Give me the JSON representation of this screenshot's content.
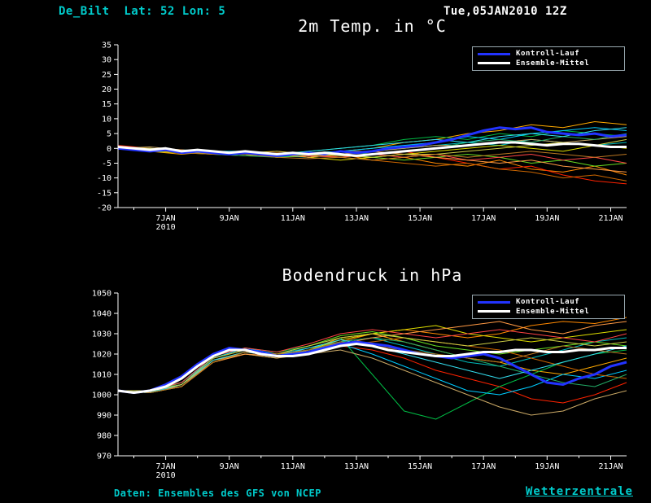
{
  "header": {
    "station": "De_Bilt  Lat: 52 Lon: 5",
    "run": "Tue,05JAN2010 12Z"
  },
  "footer": {
    "source": "Daten: Ensembles des GFS von NCEP",
    "brand": "Wetterzentrale"
  },
  "legend": {
    "control": "Kontroll-Lauf",
    "mean": "Ensemble-Mittel"
  },
  "colors": {
    "background": "#000000",
    "text": "#ffffff",
    "accent_cyan": "#00cccc",
    "control": "#2233ff",
    "mean": "#ffffff"
  },
  "chart_data": [
    {
      "id": "temperature",
      "type": "line",
      "title": "2m Temp. in °C",
      "ylabel": "",
      "xlabel": "",
      "ylim": [
        -20,
        35
      ],
      "yticks": [
        -20,
        -15,
        -10,
        -5,
        0,
        5,
        10,
        15,
        20,
        25,
        30,
        35
      ],
      "xlim": [
        5.5,
        21.5
      ],
      "xticks": [
        {
          "day": 7,
          "label": "7JAN",
          "sublabel": "2010"
        },
        {
          "day": 9,
          "label": "9JAN"
        },
        {
          "day": 11,
          "label": "11JAN"
        },
        {
          "day": 13,
          "label": "13JAN"
        },
        {
          "day": 15,
          "label": "15JAN"
        },
        {
          "day": 17,
          "label": "17JAN"
        },
        {
          "day": 19,
          "label": "19JAN"
        },
        {
          "day": 21,
          "label": "21JAN"
        }
      ],
      "control": {
        "name": "Kontroll-Lauf",
        "color": "#2233ff",
        "x_start": 5.5,
        "x_step": 0.5,
        "values": [
          0,
          -0.5,
          -1,
          -0.5,
          -1.5,
          -1,
          -1.5,
          -2,
          -1.5,
          -2,
          -2.5,
          -2,
          -1.5,
          -2,
          -1,
          -1.5,
          -1,
          0,
          0.5,
          1,
          2,
          3,
          4.5,
          6,
          7,
          6.5,
          7,
          5.5,
          5,
          4.5,
          5,
          4,
          4.5
        ]
      },
      "mean": {
        "name": "Ensemble-Mittel",
        "color": "#ffffff",
        "x_start": 5.5,
        "x_step": 0.5,
        "values": [
          0.5,
          0,
          -0.5,
          0,
          -1,
          -0.5,
          -1,
          -1.5,
          -1,
          -1.5,
          -2,
          -1.5,
          -2,
          -1.5,
          -2,
          -2.5,
          -2,
          -1.5,
          -1,
          -0.5,
          0,
          0.5,
          1,
          1.5,
          2,
          2,
          1.5,
          1,
          1.5,
          1.5,
          1,
          0.5,
          0.5
        ]
      },
      "members": [
        {
          "color": "#ff8800",
          "x_start": 5.5,
          "x_step": 1,
          "values": [
            0.5,
            0,
            -1,
            -2,
            -1,
            -2,
            -3,
            -2,
            -4,
            -3,
            -5,
            -6,
            -4,
            -7,
            -8,
            -6,
            -9
          ]
        },
        {
          "color": "#ffaa00",
          "x_start": 5.5,
          "x_step": 1,
          "values": [
            0,
            -1,
            -2,
            -1,
            -2,
            -3,
            -2,
            -1,
            0,
            2,
            3,
            5,
            6,
            8,
            7,
            9,
            8
          ]
        },
        {
          "color": "#ff2200",
          "x_start": 5.5,
          "x_step": 1,
          "values": [
            1,
            0,
            -1,
            -1.5,
            -2,
            -1,
            -2,
            -3,
            -2,
            -1,
            -3,
            -5,
            -7,
            -6,
            -9,
            -11,
            -12
          ]
        },
        {
          "color": "#00bb44",
          "x_start": 5.5,
          "x_step": 1,
          "values": [
            0,
            -0.5,
            -1,
            -2,
            -1.5,
            -2,
            -1,
            0,
            1,
            3,
            4,
            3,
            5,
            4,
            6,
            5,
            4
          ]
        },
        {
          "color": "#00bbbb",
          "x_start": 5.5,
          "x_step": 1,
          "values": [
            0.5,
            0,
            -1,
            -1,
            -2,
            -2.5,
            -3,
            -2,
            -1,
            0,
            1,
            2,
            1,
            3,
            2,
            1,
            2
          ]
        },
        {
          "color": "#dddd00",
          "x_start": 5.5,
          "x_step": 1,
          "values": [
            0,
            -1,
            -1.5,
            -2,
            -2.5,
            -2,
            -3,
            -4,
            -3,
            -2,
            -1,
            0,
            1,
            0,
            -1,
            1,
            0
          ]
        },
        {
          "color": "#00ccff",
          "x_start": 5.5,
          "x_step": 1,
          "values": [
            0.5,
            0,
            -0.5,
            -1,
            -1,
            -2,
            -1.5,
            -1,
            0,
            1,
            2,
            4,
            3,
            5,
            6,
            7,
            6
          ]
        },
        {
          "color": "#66dd22",
          "x_start": 5.5,
          "x_step": 1,
          "values": [
            0,
            -0.5,
            -1.5,
            -1,
            -2,
            -3,
            -2.5,
            -2,
            -3,
            -4,
            -3,
            -2,
            -3,
            -5,
            -4,
            -6,
            -5
          ]
        },
        {
          "color": "#cc6600",
          "x_start": 5.5,
          "x_step": 1,
          "values": [
            0.5,
            -0.5,
            -1,
            -2,
            -2,
            -1.5,
            -2,
            -3,
            -4,
            -5,
            -6,
            -5,
            -7,
            -8,
            -10,
            -9,
            -11
          ]
        },
        {
          "color": "#ccaa66",
          "x_start": 5.5,
          "x_step": 1,
          "values": [
            0,
            0.5,
            -0.5,
            -1,
            -1.5,
            -2,
            -2,
            -1,
            -1,
            0,
            1,
            1,
            2,
            3,
            2,
            3,
            4
          ]
        },
        {
          "color": "#ff4444",
          "x_start": 5.5,
          "x_step": 1,
          "values": [
            0.5,
            0,
            -1,
            -1.5,
            -1,
            -2,
            -2.5,
            -3,
            -2,
            -3,
            -2,
            -4,
            -3,
            -2,
            -4,
            -3,
            -5
          ]
        },
        {
          "color": "#22aa66",
          "x_start": 5.5,
          "x_step": 1,
          "values": [
            0,
            -1,
            -1,
            -2,
            -2.5,
            -3,
            -2,
            -1,
            -2,
            -1,
            0,
            2,
            3,
            2,
            4,
            3,
            5
          ]
        },
        {
          "color": "#ff9944",
          "x_start": 5.5,
          "x_step": 1,
          "values": [
            0.5,
            0,
            -0.5,
            -1.5,
            -2,
            -2,
            -3,
            -2,
            -1,
            -2,
            -3,
            -4,
            -5,
            -4,
            -6,
            -7,
            -8
          ]
        },
        {
          "color": "#33ddee",
          "x_start": 5.5,
          "x_step": 1,
          "values": [
            0,
            -0.5,
            -1,
            -1,
            -1.5,
            -2,
            -1,
            0,
            1,
            2,
            3,
            2,
            4,
            5,
            4,
            6,
            7
          ]
        },
        {
          "color": "#cccc44",
          "x_start": 5.5,
          "x_step": 1,
          "values": [
            0.5,
            0,
            -1,
            -2,
            -1.5,
            -1,
            -2,
            -2.5,
            -3,
            -2,
            -2,
            -1,
            0,
            1,
            2,
            1,
            3
          ]
        },
        {
          "color": "#bb7722",
          "x_start": 5.5,
          "x_step": 1,
          "values": [
            0,
            -0.5,
            -1.5,
            -2,
            -2,
            -3,
            -3.5,
            -3,
            -4,
            -3,
            -2,
            -3,
            -2,
            -1,
            -2,
            -3,
            -2
          ]
        }
      ]
    },
    {
      "id": "pressure",
      "type": "line",
      "title": "Bodendruck in hPa",
      "ylabel": "",
      "xlabel": "",
      "ylim": [
        970,
        1050
      ],
      "yticks": [
        970,
        980,
        990,
        1000,
        1010,
        1020,
        1030,
        1040,
        1050
      ],
      "xlim": [
        5.5,
        21.5
      ],
      "xticks": [
        {
          "day": 7,
          "label": "7JAN",
          "sublabel": "2010"
        },
        {
          "day": 9,
          "label": "9JAN"
        },
        {
          "day": 11,
          "label": "11JAN"
        },
        {
          "day": 13,
          "label": "13JAN"
        },
        {
          "day": 15,
          "label": "15JAN"
        },
        {
          "day": 17,
          "label": "17JAN"
        },
        {
          "day": 19,
          "label": "19JAN"
        },
        {
          "day": 21,
          "label": "21JAN"
        }
      ],
      "control": {
        "name": "Kontroll-Lauf",
        "color": "#2233ff",
        "x_start": 5.5,
        "x_step": 0.5,
        "values": [
          1002,
          1001,
          1002,
          1005,
          1009,
          1015,
          1020,
          1023,
          1022,
          1021,
          1019,
          1020,
          1021,
          1023,
          1025,
          1026,
          1025,
          1024,
          1022,
          1020,
          1019,
          1018,
          1019,
          1020,
          1018,
          1014,
          1010,
          1006,
          1005,
          1008,
          1010,
          1014,
          1016
        ]
      },
      "mean": {
        "name": "Ensemble-Mittel",
        "color": "#ffffff",
        "x_start": 5.5,
        "x_step": 0.5,
        "values": [
          1002,
          1001,
          1002,
          1004,
          1008,
          1014,
          1019,
          1022,
          1022,
          1020,
          1019,
          1019,
          1020,
          1022,
          1024,
          1025,
          1024,
          1022,
          1021,
          1020,
          1019,
          1019,
          1020,
          1021,
          1021,
          1022,
          1022,
          1021,
          1021,
          1022,
          1022,
          1023,
          1023
        ]
      },
      "members": [
        {
          "color": "#ff8800",
          "x_start": 5.5,
          "x_step": 1,
          "values": [
            1002,
            1002,
            1006,
            1018,
            1022,
            1020,
            1021,
            1026,
            1030,
            1032,
            1030,
            1028,
            1030,
            1034,
            1036,
            1035,
            1038
          ]
        },
        {
          "color": "#ffaa00",
          "x_start": 5.5,
          "x_step": 1,
          "values": [
            1002,
            1001,
            1005,
            1016,
            1020,
            1018,
            1022,
            1028,
            1030,
            1026,
            1022,
            1018,
            1016,
            1012,
            1010,
            1014,
            1018
          ]
        },
        {
          "color": "#ff2200",
          "x_start": 5.5,
          "x_step": 1,
          "values": [
            1002,
            1002,
            1004,
            1017,
            1021,
            1019,
            1020,
            1024,
            1022,
            1018,
            1012,
            1008,
            1004,
            998,
            996,
            1000,
            1006
          ]
        },
        {
          "color": "#00bb44",
          "x_start": 5.5,
          "x_step": 1,
          "values": [
            1002,
            1001,
            1006,
            1019,
            1023,
            1021,
            1024,
            1028,
            1010,
            992,
            988,
            996,
            1004,
            1010,
            1016,
            1020,
            1022
          ]
        },
        {
          "color": "#00bbbb",
          "x_start": 5.5,
          "x_step": 1,
          "values": [
            1002,
            1002,
            1005,
            1018,
            1022,
            1020,
            1023,
            1026,
            1028,
            1024,
            1020,
            1016,
            1014,
            1018,
            1022,
            1026,
            1028
          ]
        },
        {
          "color": "#dddd00",
          "x_start": 5.5,
          "x_step": 1,
          "values": [
            1002,
            1001,
            1004,
            1016,
            1021,
            1019,
            1022,
            1027,
            1030,
            1032,
            1034,
            1030,
            1028,
            1026,
            1028,
            1030,
            1032
          ]
        },
        {
          "color": "#00ccff",
          "x_start": 5.5,
          "x_step": 1,
          "values": [
            1002,
            1002,
            1006,
            1018,
            1023,
            1020,
            1022,
            1025,
            1020,
            1014,
            1008,
            1002,
            1000,
            1004,
            1010,
            1008,
            1012
          ]
        },
        {
          "color": "#66dd22",
          "x_start": 5.5,
          "x_step": 1,
          "values": [
            1002,
            1001,
            1005,
            1017,
            1021,
            1020,
            1024,
            1029,
            1031,
            1028,
            1024,
            1022,
            1020,
            1022,
            1024,
            1026,
            1024
          ]
        },
        {
          "color": "#cc6600",
          "x_start": 5.5,
          "x_step": 1,
          "values": [
            1002,
            1002,
            1005,
            1018,
            1022,
            1019,
            1021,
            1024,
            1026,
            1028,
            1026,
            1024,
            1022,
            1018,
            1014,
            1010,
            1008
          ]
        },
        {
          "color": "#ccaa66",
          "x_start": 5.5,
          "x_step": 1,
          "values": [
            1002,
            1001,
            1004,
            1017,
            1020,
            1018,
            1020,
            1022,
            1018,
            1012,
            1006,
            1000,
            994,
            990,
            992,
            998,
            1002
          ]
        },
        {
          "color": "#ff4444",
          "x_start": 5.5,
          "x_step": 1,
          "values": [
            1002,
            1002,
            1006,
            1019,
            1023,
            1021,
            1025,
            1030,
            1032,
            1030,
            1028,
            1030,
            1032,
            1030,
            1028,
            1026,
            1030
          ]
        },
        {
          "color": "#22aa66",
          "x_start": 5.5,
          "x_step": 1,
          "values": [
            1002,
            1001,
            1005,
            1018,
            1022,
            1020,
            1022,
            1026,
            1028,
            1026,
            1022,
            1018,
            1014,
            1010,
            1006,
            1004,
            1010
          ]
        },
        {
          "color": "#ff9944",
          "x_start": 5.5,
          "x_step": 1,
          "values": [
            1002,
            1002,
            1004,
            1016,
            1020,
            1019,
            1021,
            1025,
            1028,
            1030,
            1032,
            1034,
            1036,
            1032,
            1030,
            1034,
            1036
          ]
        },
        {
          "color": "#33ddee",
          "x_start": 5.5,
          "x_step": 1,
          "values": [
            1002,
            1001,
            1005,
            1017,
            1021,
            1019,
            1023,
            1027,
            1024,
            1020,
            1016,
            1012,
            1008,
            1012,
            1016,
            1020,
            1024
          ]
        },
        {
          "color": "#cccc44",
          "x_start": 5.5,
          "x_step": 1,
          "values": [
            1002,
            1002,
            1005,
            1018,
            1022,
            1020,
            1024,
            1028,
            1030,
            1028,
            1026,
            1024,
            1026,
            1028,
            1026,
            1024,
            1026
          ]
        },
        {
          "color": "#bb7722",
          "x_start": 5.5,
          "x_step": 1,
          "values": [
            1002,
            1001,
            1004,
            1016,
            1021,
            1020,
            1022,
            1026,
            1024,
            1022,
            1020,
            1018,
            1016,
            1020,
            1024,
            1022,
            1020
          ]
        }
      ]
    }
  ]
}
